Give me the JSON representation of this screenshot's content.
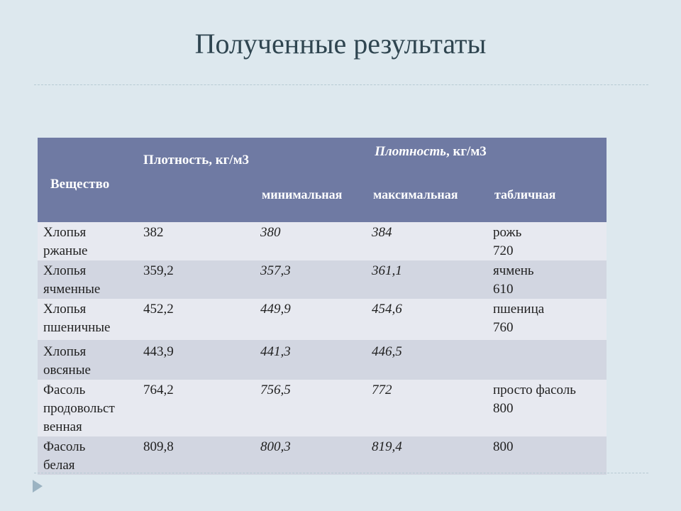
{
  "title": "Полученные результаты",
  "table": {
    "header": {
      "substance": "Вещество",
      "density": "Плотность, кг/м3",
      "group_italic": "Плотность",
      "group_rest": ", кг/м3",
      "sub": [
        "минимальная",
        "максимальная",
        "табличная"
      ]
    },
    "rows": [
      {
        "name_l1": "Хлопья",
        "name_l2": "ржаные",
        "name_l3": "",
        "density": "382",
        "min": "380",
        "max": "384",
        "table_l1": "рожь",
        "table_l2": "720"
      },
      {
        "name_l1": "Хлопья",
        "name_l2": "ячменные",
        "name_l3": "",
        "density": "359,2",
        "min": "357,3",
        "max": "361,1",
        "table_l1": "ячмень",
        "table_l2": "610"
      },
      {
        "name_l1": "Хлопья",
        "name_l2": "пшеничные",
        "name_l3": "",
        "density": "452,2",
        "min": "449,9",
        "max": "454,6",
        "table_l1": "пшеница",
        "table_l2": "760"
      },
      {
        "name_l1": "Хлопья",
        "name_l2": "овсяные",
        "name_l3": "",
        "density": "443,9",
        "min": "441,3",
        "max": "446,5",
        "table_l1": "",
        "table_l2": ""
      },
      {
        "name_l1": "Фасоль",
        "name_l2": "продовольст",
        "name_l3": "венная",
        "density": "764,2",
        "min": "756,5",
        "max": "772",
        "table_l1": "просто фасоль",
        "table_l2": "800"
      },
      {
        "name_l1": "Фасоль",
        "name_l2": "белая",
        "name_l3": "",
        "density": "809,8",
        "min": "800,3",
        "max": "819,4",
        "table_l1": "800",
        "table_l2": ""
      }
    ]
  }
}
